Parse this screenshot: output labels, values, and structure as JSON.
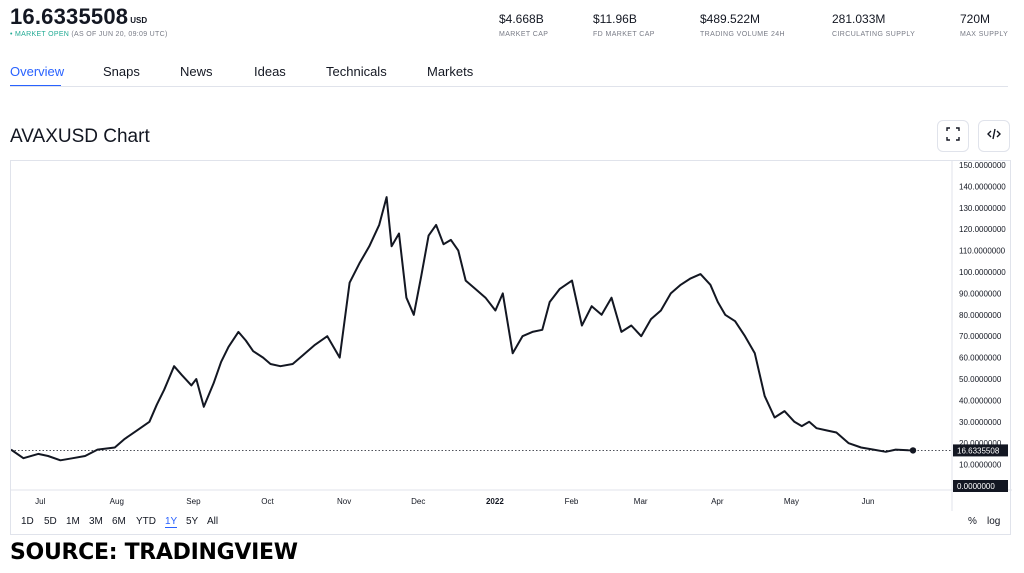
{
  "header": {
    "price": "16.6335508",
    "price_unit": "USD",
    "status_dot": "•",
    "market_status": "MARKET OPEN",
    "as_of": "(AS OF JUN 20, 09:09 UTC)"
  },
  "stats": [
    {
      "value": "$4.668B",
      "label": "MARKET CAP"
    },
    {
      "value": "$11.96B",
      "label": "FD MARKET CAP"
    },
    {
      "value": "$489.522M",
      "label": "TRADING VOLUME 24H"
    },
    {
      "value": "281.033M",
      "label": "CIRCULATING SUPPLY"
    },
    {
      "value": "720M",
      "label": "MAX SUPPLY"
    }
  ],
  "tabs": [
    {
      "label": "Overview",
      "active": true
    },
    {
      "label": "Snaps",
      "active": false
    },
    {
      "label": "News",
      "active": false
    },
    {
      "label": "Ideas",
      "active": false
    },
    {
      "label": "Technicals",
      "active": false
    },
    {
      "label": "Markets",
      "active": false
    }
  ],
  "chart_title": "AVAXUSD Chart",
  "icons": {
    "fullscreen": "fullscreen-icon",
    "embed": "code-embed-icon"
  },
  "ranges": [
    {
      "label": "1D",
      "active": false
    },
    {
      "label": "5D",
      "active": false
    },
    {
      "label": "1M",
      "active": false
    },
    {
      "label": "3M",
      "active": false
    },
    {
      "label": "6M",
      "active": false
    },
    {
      "label": "YTD",
      "active": false
    },
    {
      "label": "1Y",
      "active": true
    },
    {
      "label": "5Y",
      "active": false
    },
    {
      "label": "All",
      "active": false
    }
  ],
  "range_right": {
    "percent": "%",
    "log": "log"
  },
  "source_text": "SOURCE: TRADINGVIEW",
  "colors": {
    "accent": "#2962ff",
    "line": "#131722",
    "market_open": "#22ab94",
    "axis_text": "#131722",
    "label_bg": "#131722"
  },
  "chart_data": {
    "type": "line",
    "title": "",
    "xlabel": "",
    "ylabel": "",
    "ylim": [
      0,
      150
    ],
    "x_ticks": [
      "Jul",
      "Aug",
      "Sep",
      "Oct",
      "Nov",
      "Dec",
      "2022",
      "Feb",
      "Mar",
      "Apr",
      "May",
      "Jun"
    ],
    "y_ticks": [
      "150.0000000",
      "140.0000000",
      "130.0000000",
      "120.0000000",
      "110.0000000",
      "100.0000000",
      "90.0000000",
      "80.0000000",
      "70.0000000",
      "60.0000000",
      "50.0000000",
      "40.0000000",
      "30.0000000",
      "20.0000000",
      "10.0000000"
    ],
    "last_price_label": "16.6335508",
    "last_price": 16.63,
    "baseline_label": "0.0000000",
    "grid": false,
    "series": [
      {
        "x": [
          "2021-06-20",
          "2021-06-25",
          "2021-07-01",
          "2021-07-05",
          "2021-07-10",
          "2021-07-15",
          "2021-07-20",
          "2021-07-25",
          "2021-08-01",
          "2021-08-05",
          "2021-08-10",
          "2021-08-15",
          "2021-08-18",
          "2021-08-21",
          "2021-08-25",
          "2021-08-28",
          "2021-09-01",
          "2021-09-03",
          "2021-09-06",
          "2021-09-10",
          "2021-09-13",
          "2021-09-16",
          "2021-09-20",
          "2021-09-23",
          "2021-09-26",
          "2021-09-30",
          "2021-10-03",
          "2021-10-07",
          "2021-10-12",
          "2021-10-16",
          "2021-10-21",
          "2021-10-26",
          "2021-10-31",
          "2021-11-04",
          "2021-11-08",
          "2021-11-12",
          "2021-11-16",
          "2021-11-19",
          "2021-11-21",
          "2021-11-24",
          "2021-11-27",
          "2021-11-30",
          "2021-12-03",
          "2021-12-06",
          "2021-12-09",
          "2021-12-12",
          "2021-12-15",
          "2021-12-18",
          "2021-12-21",
          "2021-12-25",
          "2021-12-29",
          "2022-01-02",
          "2022-01-05",
          "2022-01-09",
          "2022-01-13",
          "2022-01-17",
          "2022-01-21",
          "2022-01-24",
          "2022-01-28",
          "2022-02-02",
          "2022-02-06",
          "2022-02-10",
          "2022-02-14",
          "2022-02-18",
          "2022-02-22",
          "2022-02-26",
          "2022-03-02",
          "2022-03-06",
          "2022-03-10",
          "2022-03-14",
          "2022-03-18",
          "2022-03-22",
          "2022-03-26",
          "2022-03-30",
          "2022-04-02",
          "2022-04-05",
          "2022-04-09",
          "2022-04-13",
          "2022-04-17",
          "2022-04-21",
          "2022-04-25",
          "2022-04-29",
          "2022-05-03",
          "2022-05-06",
          "2022-05-09",
          "2022-05-12",
          "2022-05-16",
          "2022-05-20",
          "2022-05-25",
          "2022-05-30",
          "2022-06-04",
          "2022-06-09",
          "2022-06-13",
          "2022-06-16",
          "2022-06-18",
          "2022-06-20"
        ],
        "y": [
          17,
          13,
          15,
          14,
          12,
          13,
          14,
          17,
          18,
          22,
          26,
          30,
          38,
          45,
          56,
          52,
          47,
          50,
          37,
          48,
          58,
          65,
          72,
          68,
          63,
          60,
          57,
          56,
          57,
          61,
          66,
          70,
          60,
          95,
          104,
          112,
          122,
          135,
          112,
          118,
          88,
          80,
          98,
          117,
          122,
          113,
          115,
          110,
          96,
          92,
          88,
          82,
          90,
          62,
          70,
          72,
          73,
          86,
          92,
          96,
          75,
          84,
          80,
          88,
          72,
          75,
          70,
          78,
          82,
          90,
          94,
          97,
          99,
          94,
          86,
          80,
          77,
          70,
          62,
          42,
          32,
          35,
          30,
          28,
          30,
          27,
          26,
          25,
          20,
          18,
          17,
          16,
          17,
          16.8,
          16.7,
          16.63
        ]
      }
    ]
  }
}
